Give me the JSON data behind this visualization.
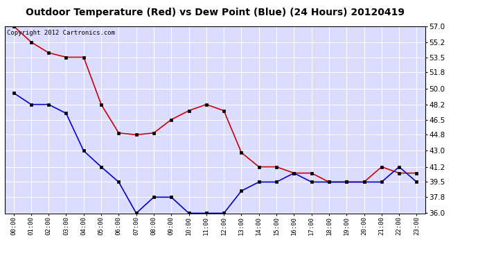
{
  "title": "Outdoor Temperature (Red) vs Dew Point (Blue) (24 Hours) 20120419",
  "copyright_text": "Copyright 2012 Cartronics.com",
  "x_labels": [
    "00:00",
    "01:00",
    "02:00",
    "03:00",
    "04:00",
    "05:00",
    "06:00",
    "07:00",
    "08:00",
    "09:00",
    "10:00",
    "11:00",
    "12:00",
    "13:00",
    "14:00",
    "15:00",
    "16:00",
    "17:00",
    "18:00",
    "19:00",
    "20:00",
    "21:00",
    "22:00",
    "23:00"
  ],
  "temp_red": [
    57.0,
    55.2,
    54.0,
    53.5,
    53.5,
    48.2,
    45.0,
    44.8,
    45.0,
    46.5,
    47.5,
    48.2,
    47.5,
    42.8,
    41.2,
    41.2,
    40.5,
    40.5,
    39.5,
    39.5,
    39.5,
    41.2,
    40.5,
    40.5
  ],
  "dew_blue": [
    49.5,
    48.2,
    48.2,
    47.2,
    43.0,
    41.2,
    39.5,
    36.0,
    37.8,
    37.8,
    36.0,
    36.0,
    36.0,
    38.5,
    39.5,
    39.5,
    40.5,
    39.5,
    39.5,
    39.5,
    39.5,
    39.5,
    41.2,
    39.5
  ],
  "ylim_min": 36.0,
  "ylim_max": 57.0,
  "yticks": [
    36.0,
    37.8,
    39.5,
    41.2,
    43.0,
    44.8,
    46.5,
    48.2,
    50.0,
    51.8,
    53.5,
    55.2,
    57.0
  ],
  "background_color": "#ffffff",
  "plot_bg_color": "#dcdcff",
  "grid_color": "#ffffff",
  "red_color": "#cc0000",
  "blue_color": "#0000cc",
  "marker_color": "#000000",
  "title_fontsize": 10,
  "copyright_fontsize": 6.5,
  "marker_size": 3
}
